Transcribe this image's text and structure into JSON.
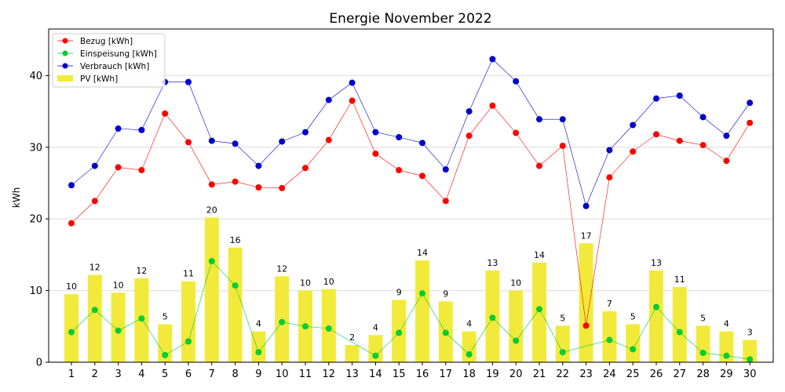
{
  "chart_data": {
    "type": "bar",
    "title": "Energie November 2022",
    "xlabel": "",
    "ylabel": "kWh",
    "x": [
      1,
      2,
      3,
      4,
      5,
      6,
      7,
      8,
      9,
      10,
      11,
      12,
      13,
      14,
      15,
      16,
      17,
      18,
      19,
      20,
      21,
      22,
      23,
      24,
      25,
      26,
      27,
      28,
      29,
      30
    ],
    "ylim": [
      0,
      46.5
    ],
    "yticks": [
      0,
      10,
      20,
      30,
      40
    ],
    "grid": "horizontal",
    "legend_placement": "top-left",
    "bar_series": {
      "name": "PV [kWh]",
      "color": "#f2ea3b",
      "values": [
        9.5,
        12.2,
        9.7,
        11.7,
        5.3,
        11.3,
        20.2,
        16.0,
        4.3,
        12.0,
        10.0,
        10.2,
        2.4,
        3.8,
        8.7,
        14.2,
        8.5,
        4.3,
        12.8,
        10.0,
        13.9,
        5.1,
        16.6,
        7.1,
        5.3,
        12.8,
        10.5,
        5.1,
        4.3,
        3.1
      ],
      "labels": [
        "10",
        "12",
        "10",
        "12",
        "5",
        "11",
        "20",
        "16",
        "4",
        "12",
        "10",
        "10",
        "2",
        "4",
        "9",
        "14",
        "9",
        "4",
        "13",
        "10",
        "14",
        "5",
        "17",
        "7",
        "5",
        "13",
        "11",
        "5",
        "4",
        "3"
      ]
    },
    "series": [
      {
        "name": "Bezug [kWh]",
        "color": "#ff0000",
        "values": [
          19.4,
          22.5,
          27.2,
          26.8,
          34.7,
          30.7,
          24.8,
          25.2,
          24.4,
          24.3,
          27.1,
          31.0,
          36.5,
          29.1,
          26.8,
          26.0,
          22.5,
          31.6,
          35.8,
          32.0,
          27.4,
          30.2,
          5.1,
          25.8,
          29.4,
          31.8,
          30.9,
          30.3,
          28.1,
          33.4
        ]
      },
      {
        "name": "Einspeisung [kWh]",
        "color": "#00cc33",
        "values": [
          4.2,
          7.3,
          4.4,
          6.1,
          1.0,
          2.9,
          14.1,
          10.7,
          1.4,
          5.6,
          5.0,
          4.7,
          null,
          0.9,
          4.1,
          9.6,
          4.1,
          1.1,
          6.2,
          3.0,
          7.4,
          1.4,
          null,
          3.1,
          1.8,
          7.7,
          4.2,
          1.3,
          0.9,
          0.4
        ]
      },
      {
        "name": "Verbrauch [kWh]",
        "color": "#0000cc",
        "values": [
          24.7,
          27.4,
          32.6,
          32.4,
          39.1,
          39.1,
          30.9,
          30.5,
          27.4,
          30.8,
          32.1,
          36.6,
          39.0,
          32.1,
          31.4,
          30.6,
          26.9,
          35.0,
          42.3,
          39.2,
          33.9,
          33.9,
          21.8,
          29.6,
          33.1,
          36.8,
          37.2,
          34.2,
          31.6,
          36.2
        ]
      }
    ]
  }
}
